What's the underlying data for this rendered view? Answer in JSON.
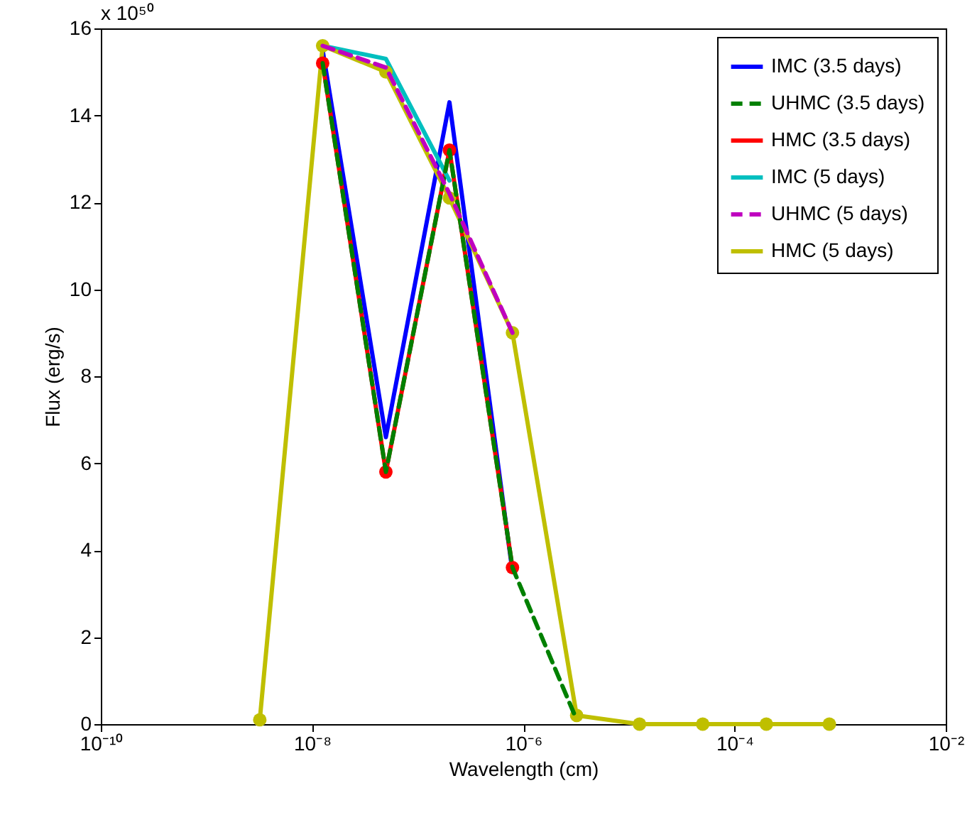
{
  "chart_data": {
    "type": "line",
    "xlabel": "Wavelength (cm)",
    "ylabel": "Flux (erg/s)",
    "annotations": [
      "x 10⁵⁰"
    ],
    "x": [
      3.2e-09,
      1.26e-08,
      5e-08,
      2e-07,
      7.9e-07,
      3.2e-06,
      1.26e-05,
      5e-05,
      0.0002,
      0.00079
    ],
    "series": [
      {
        "name": "IMC (3.5 days)",
        "color": "#0000ff",
        "marker": "none",
        "line_style": "solid",
        "values": [
          null,
          15.5,
          6.6,
          14.3,
          3.5,
          null,
          null,
          null,
          null,
          null
        ]
      },
      {
        "name": "UHMC (3.5 days)",
        "color": "#008000",
        "marker": "none",
        "line_style": "dashed",
        "values": [
          null,
          15.2,
          5.8,
          13.2,
          3.6,
          0.1,
          null,
          null,
          null,
          null
        ]
      },
      {
        "name": "HMC (3.5 days)",
        "color": "#ff0000",
        "marker": "circle",
        "line_style": "solid",
        "values": [
          null,
          15.2,
          5.8,
          13.2,
          3.6,
          null,
          null,
          null,
          null,
          null
        ]
      },
      {
        "name": "IMC (5 days)",
        "color": "#00bfbf",
        "marker": "none",
        "line_style": "solid",
        "values": [
          null,
          15.6,
          15.3,
          12.5,
          null,
          null,
          null,
          null,
          null,
          null
        ]
      },
      {
        "name": "UHMC (5 days)",
        "color": "#bf00bf",
        "marker": "none",
        "line_style": "dashed",
        "values": [
          null,
          15.6,
          15.1,
          12.2,
          9.0,
          null,
          null,
          null,
          null,
          null
        ]
      },
      {
        "name": "HMC (5 days)",
        "color": "#bfbf00",
        "marker": "circle",
        "line_style": "solid",
        "values": [
          0.1,
          15.6,
          15.0,
          12.1,
          9.0,
          0.2,
          0,
          0,
          0,
          0
        ]
      }
    ],
    "log": "x",
    "xlim": [
      1e-10,
      0.01
    ],
    "xticks": [
      {
        "value": 1e-10,
        "label": "10⁻¹⁰"
      },
      {
        "value": 1e-08,
        "label": "10⁻⁸"
      },
      {
        "value": 1e-06,
        "label": "10⁻⁶"
      },
      {
        "value": 0.0001,
        "label": "10⁻⁴"
      },
      {
        "value": 0.01,
        "label": "10⁻²"
      }
    ],
    "ylim": [
      0,
      16
    ],
    "yticks": [
      0,
      2,
      4,
      6,
      8,
      10,
      12,
      14,
      16
    ],
    "grid": false,
    "legend": "top right"
  }
}
